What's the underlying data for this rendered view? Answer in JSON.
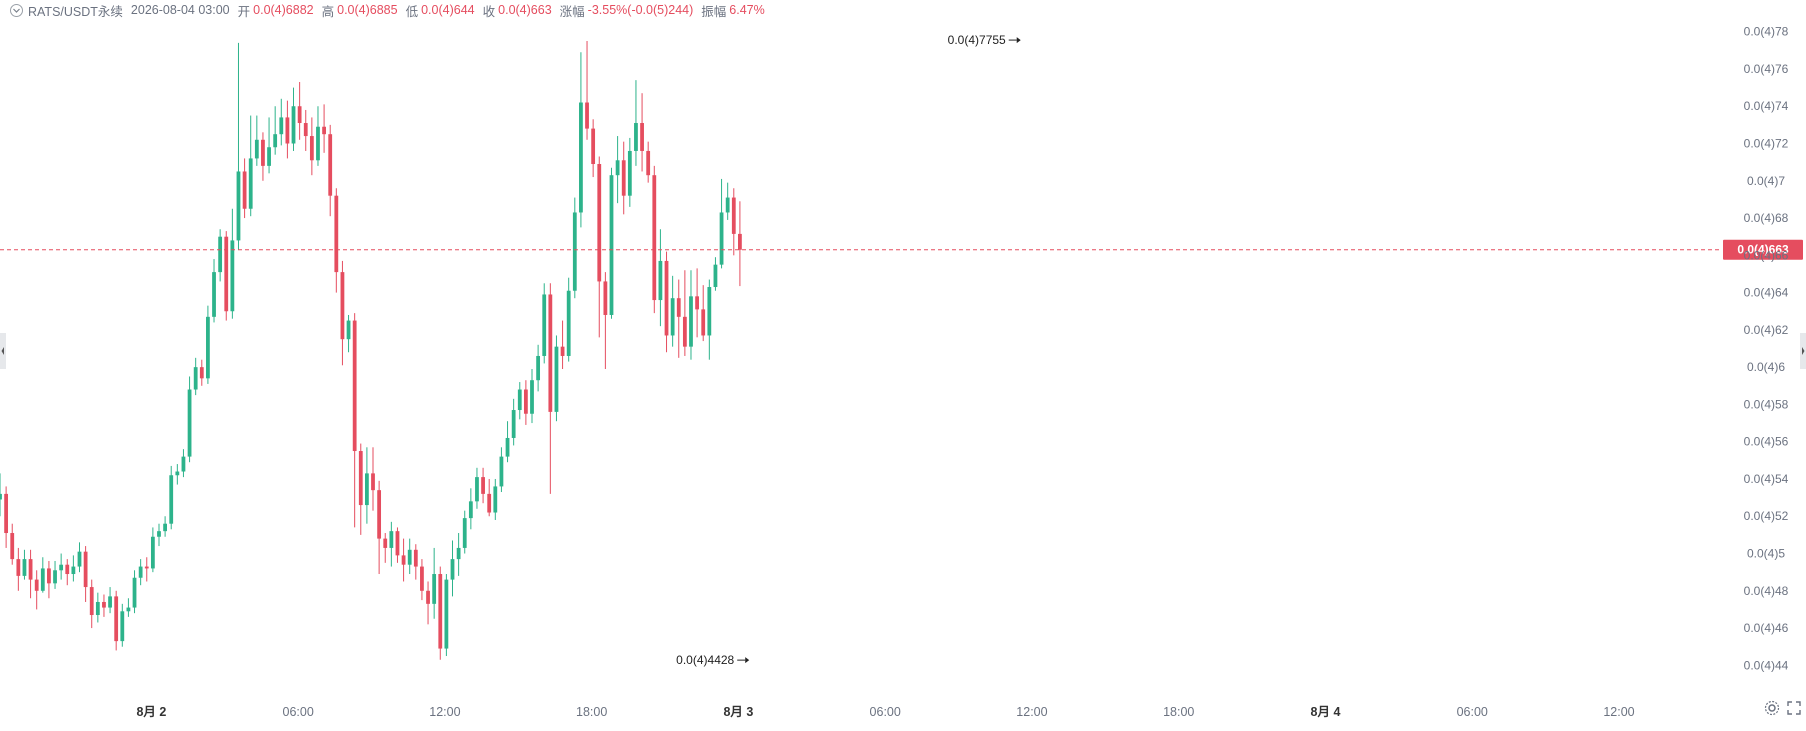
{
  "header": {
    "toggle_icon": "chevron-down-icon",
    "symbol": "RATS/USDT永续",
    "datetime": "2026-08-04 03:00",
    "open_label": "开",
    "open_value": "0.0(4)6882",
    "high_label": "高",
    "high_value": "0.0(4)6885",
    "low_label": "低",
    "low_value": "0.0(4)644",
    "close_label": "收",
    "close_value": "0.0(4)663",
    "change_label": "涨幅",
    "change_value": "-3.55%(-0.0(5)244)",
    "amplitude_label": "振幅",
    "amplitude_value": "6.47%"
  },
  "colors": {
    "up": "#2db38b",
    "down": "#e54d5f",
    "axis_text": "#6b7280",
    "price_line": "#e54d5f"
  },
  "chart_data": {
    "type": "candlestick",
    "interval": "1h",
    "value_unit": "0.0(4)xx = 0.0000xx",
    "ylim": [
      0.4375,
      0.7852
    ],
    "y_ticks": [
      {
        "value": 0.44,
        "label": "0.0(4)44"
      },
      {
        "value": 0.46,
        "label": "0.0(4)46"
      },
      {
        "value": 0.48,
        "label": "0.0(4)48"
      },
      {
        "value": 0.5,
        "label": "0.0(4)5"
      },
      {
        "value": 0.52,
        "label": "0.0(4)52"
      },
      {
        "value": 0.54,
        "label": "0.0(4)54"
      },
      {
        "value": 0.56,
        "label": "0.0(4)56"
      },
      {
        "value": 0.58,
        "label": "0.0(4)58"
      },
      {
        "value": 0.6,
        "label": "0.0(4)6"
      },
      {
        "value": 0.62,
        "label": "0.0(4)62"
      },
      {
        "value": 0.64,
        "label": "0.0(4)64"
      },
      {
        "value": 0.66,
        "label": "0.0(4)66"
      },
      {
        "value": 0.68,
        "label": "0.0(4)68"
      },
      {
        "value": 0.7,
        "label": "0.0(4)7"
      },
      {
        "value": 0.72,
        "label": "0.0(4)72"
      },
      {
        "value": 0.74,
        "label": "0.0(4)74"
      },
      {
        "value": 0.76,
        "label": "0.0(4)76"
      },
      {
        "value": 0.78,
        "label": "0.0(4)78"
      }
    ],
    "x_ticks": [
      {
        "index": 22,
        "label": "8月 2"
      },
      {
        "index": 28,
        "label": "06:00"
      },
      {
        "index": 34,
        "label": "12:00"
      },
      {
        "index": 40,
        "label": "18:00"
      },
      {
        "index": 46,
        "label": "8月 3"
      },
      {
        "index": 52,
        "label": "06:00"
      },
      {
        "index": 58,
        "label": "12:00"
      },
      {
        "index": 64,
        "label": "18:00"
      },
      {
        "index": 70,
        "label": "8月 4"
      },
      {
        "index": 76,
        "label": "06:00"
      },
      {
        "index": 82,
        "label": "12:00"
      }
    ],
    "x_bounds": [
      15.81,
      86.13
    ],
    "current_price": {
      "value": 0.663,
      "label": "0.0(4)663"
    },
    "annotations": [
      {
        "index": 57.5,
        "value": 0.7755,
        "label": "0.0(4)7755"
      },
      {
        "index": 46.4,
        "value": 0.4428,
        "label": "0.0(4)4428"
      }
    ],
    "x_step": 0.25,
    "candles": [
      [
        0.529,
        0.532,
        0.543,
        0.52
      ],
      [
        0.532,
        0.511,
        0.536,
        0.503
      ],
      [
        0.511,
        0.497,
        0.516,
        0.494
      ],
      [
        0.497,
        0.488,
        0.503,
        0.48
      ],
      [
        0.488,
        0.497,
        0.502,
        0.486
      ],
      [
        0.497,
        0.486,
        0.502,
        0.476
      ],
      [
        0.486,
        0.48,
        0.491,
        0.47
      ],
      [
        0.48,
        0.492,
        0.498,
        0.479
      ],
      [
        0.492,
        0.484,
        0.496,
        0.476
      ],
      [
        0.484,
        0.491,
        0.496,
        0.481
      ],
      [
        0.491,
        0.494,
        0.5,
        0.486
      ],
      [
        0.494,
        0.489,
        0.497,
        0.483
      ],
      [
        0.489,
        0.493,
        0.499,
        0.485
      ],
      [
        0.493,
        0.501,
        0.506,
        0.49
      ],
      [
        0.501,
        0.482,
        0.504,
        0.474
      ],
      [
        0.482,
        0.467,
        0.486,
        0.46
      ],
      [
        0.467,
        0.474,
        0.479,
        0.463
      ],
      [
        0.474,
        0.471,
        0.478,
        0.466
      ],
      [
        0.471,
        0.477,
        0.482,
        0.468
      ],
      [
        0.477,
        0.453,
        0.48,
        0.448
      ],
      [
        0.453,
        0.469,
        0.473,
        0.45
      ],
      [
        0.469,
        0.471,
        0.476,
        0.466
      ],
      [
        0.471,
        0.487,
        0.491,
        0.468
      ],
      [
        0.487,
        0.493,
        0.497,
        0.483
      ],
      [
        0.493,
        0.492,
        0.498,
        0.485
      ],
      [
        0.492,
        0.509,
        0.514,
        0.49
      ],
      [
        0.509,
        0.512,
        0.516,
        0.504
      ],
      [
        0.512,
        0.516,
        0.52,
        0.509
      ],
      [
        0.516,
        0.542,
        0.547,
        0.513
      ],
      [
        0.542,
        0.544,
        0.548,
        0.537
      ],
      [
        0.544,
        0.552,
        0.556,
        0.541
      ],
      [
        0.552,
        0.588,
        0.595,
        0.549
      ],
      [
        0.588,
        0.6,
        0.605,
        0.585
      ],
      [
        0.6,
        0.594,
        0.604,
        0.59
      ],
      [
        0.594,
        0.627,
        0.633,
        0.591
      ],
      [
        0.627,
        0.651,
        0.658,
        0.624
      ],
      [
        0.651,
        0.67,
        0.674,
        0.646
      ],
      [
        0.67,
        0.63,
        0.673,
        0.625
      ],
      [
        0.63,
        0.668,
        0.685,
        0.626
      ],
      [
        0.668,
        0.705,
        0.774,
        0.663
      ],
      [
        0.705,
        0.685,
        0.712,
        0.68
      ],
      [
        0.685,
        0.712,
        0.735,
        0.681
      ],
      [
        0.712,
        0.722,
        0.735,
        0.708
      ],
      [
        0.722,
        0.708,
        0.726,
        0.7
      ],
      [
        0.708,
        0.718,
        0.734,
        0.704
      ],
      [
        0.718,
        0.725,
        0.74,
        0.714
      ],
      [
        0.725,
        0.734,
        0.744,
        0.719
      ],
      [
        0.734,
        0.72,
        0.743,
        0.712
      ],
      [
        0.72,
        0.74,
        0.75,
        0.716
      ],
      [
        0.74,
        0.731,
        0.753,
        0.722
      ],
      [
        0.731,
        0.724,
        0.738,
        0.716
      ],
      [
        0.724,
        0.711,
        0.734,
        0.703
      ],
      [
        0.711,
        0.729,
        0.74,
        0.708
      ],
      [
        0.729,
        0.725,
        0.741,
        0.715
      ],
      [
        0.725,
        0.692,
        0.73,
        0.681
      ],
      [
        0.692,
        0.651,
        0.696,
        0.64
      ],
      [
        0.651,
        0.615,
        0.657,
        0.601
      ],
      [
        0.615,
        0.625,
        0.628,
        0.608
      ],
      [
        0.625,
        0.555,
        0.629,
        0.514
      ],
      [
        0.555,
        0.526,
        0.559,
        0.51
      ],
      [
        0.526,
        0.543,
        0.557,
        0.516
      ],
      [
        0.543,
        0.534,
        0.557,
        0.523
      ],
      [
        0.534,
        0.508,
        0.539,
        0.489
      ],
      [
        0.508,
        0.503,
        0.511,
        0.495
      ],
      [
        0.503,
        0.512,
        0.517,
        0.493
      ],
      [
        0.512,
        0.499,
        0.514,
        0.495
      ],
      [
        0.499,
        0.494,
        0.508,
        0.485
      ],
      [
        0.494,
        0.502,
        0.508,
        0.489
      ],
      [
        0.502,
        0.493,
        0.505,
        0.486
      ],
      [
        0.493,
        0.48,
        0.497,
        0.475
      ],
      [
        0.48,
        0.473,
        0.485,
        0.462
      ],
      [
        0.473,
        0.489,
        0.503,
        0.465
      ],
      [
        0.489,
        0.449,
        0.493,
        0.443
      ],
      [
        0.449,
        0.486,
        0.489,
        0.445
      ],
      [
        0.486,
        0.497,
        0.507,
        0.477
      ],
      [
        0.497,
        0.503,
        0.511,
        0.488
      ],
      [
        0.503,
        0.519,
        0.523,
        0.5
      ],
      [
        0.519,
        0.528,
        0.535,
        0.513
      ],
      [
        0.528,
        0.541,
        0.546,
        0.524
      ],
      [
        0.541,
        0.532,
        0.546,
        0.527
      ],
      [
        0.532,
        0.522,
        0.54,
        0.52
      ],
      [
        0.522,
        0.536,
        0.54,
        0.518
      ],
      [
        0.536,
        0.552,
        0.557,
        0.533
      ],
      [
        0.552,
        0.562,
        0.571,
        0.549
      ],
      [
        0.562,
        0.577,
        0.583,
        0.558
      ],
      [
        0.577,
        0.588,
        0.592,
        0.572
      ],
      [
        0.588,
        0.575,
        0.593,
        0.569
      ],
      [
        0.575,
        0.593,
        0.599,
        0.57
      ],
      [
        0.593,
        0.606,
        0.612,
        0.587
      ],
      [
        0.606,
        0.639,
        0.645,
        0.602
      ],
      [
        0.639,
        0.576,
        0.645,
        0.532
      ],
      [
        0.576,
        0.611,
        0.617,
        0.571
      ],
      [
        0.611,
        0.606,
        0.625,
        0.599
      ],
      [
        0.606,
        0.641,
        0.648,
        0.603
      ],
      [
        0.641,
        0.683,
        0.691,
        0.637
      ],
      [
        0.683,
        0.742,
        0.769,
        0.675
      ],
      [
        0.742,
        0.728,
        0.775,
        0.722
      ],
      [
        0.728,
        0.709,
        0.733,
        0.702
      ],
      [
        0.709,
        0.646,
        0.713,
        0.616
      ],
      [
        0.646,
        0.628,
        0.651,
        0.599
      ],
      [
        0.628,
        0.703,
        0.707,
        0.626
      ],
      [
        0.703,
        0.711,
        0.724,
        0.688
      ],
      [
        0.711,
        0.692,
        0.721,
        0.682
      ],
      [
        0.692,
        0.716,
        0.723,
        0.686
      ],
      [
        0.716,
        0.731,
        0.754,
        0.708
      ],
      [
        0.731,
        0.716,
        0.747,
        0.705
      ],
      [
        0.716,
        0.703,
        0.721,
        0.699
      ],
      [
        0.703,
        0.636,
        0.708,
        0.629
      ],
      [
        0.636,
        0.657,
        0.674,
        0.622
      ],
      [
        0.657,
        0.617,
        0.662,
        0.608
      ],
      [
        0.617,
        0.637,
        0.649,
        0.611
      ],
      [
        0.637,
        0.627,
        0.647,
        0.605
      ],
      [
        0.627,
        0.611,
        0.652,
        0.606
      ],
      [
        0.611,
        0.638,
        0.652,
        0.604
      ],
      [
        0.638,
        0.631,
        0.653,
        0.616
      ],
      [
        0.631,
        0.617,
        0.644,
        0.614
      ],
      [
        0.617,
        0.643,
        0.647,
        0.604
      ],
      [
        0.643,
        0.655,
        0.659,
        0.641
      ],
      [
        0.655,
        0.683,
        0.701,
        0.653
      ],
      [
        0.683,
        0.691,
        0.699,
        0.679
      ],
      [
        0.691,
        0.6715,
        0.696,
        0.66
      ],
      [
        0.6715,
        0.663,
        0.689,
        0.6435
      ]
    ]
  },
  "footer": {
    "corner_icon_1": "gear-icon",
    "corner_icon_2": "expand-icon"
  }
}
